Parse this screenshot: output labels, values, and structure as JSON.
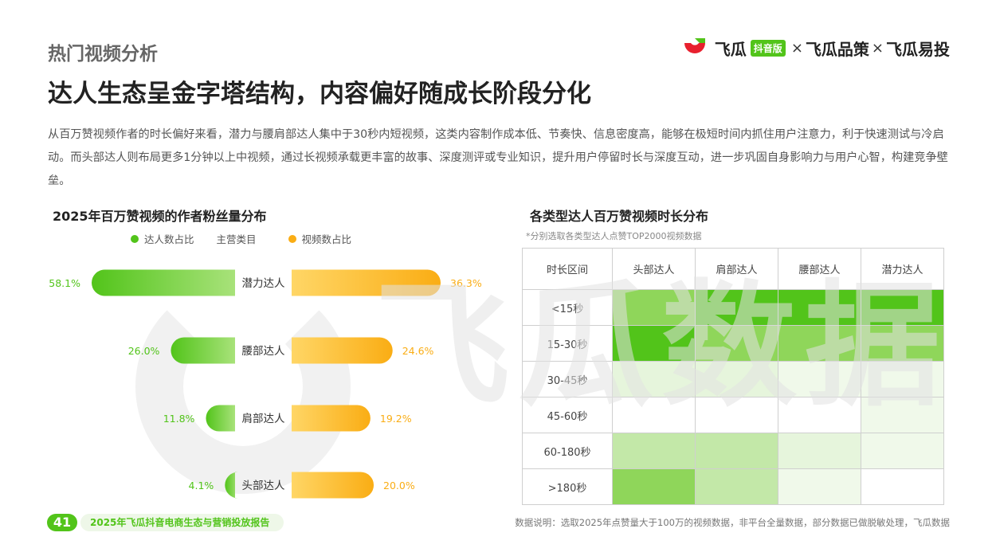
{
  "header": {
    "section_title": "热门视频分析",
    "headline": "达人生态呈金字塔结构，内容偏好随成长阶段分化",
    "intro": "从百万赞视频作者的时长偏好来看，潜力与腰肩部达人集中于30秒内短视频，这类内容制作成本低、节奏快、信息密度高，能够在极短时间内抓住用户注意力，利于快速测试与冷启动。而头部达人则布局更多1分钟以上中视频，通过长视频承载更丰富的故事、深度测评或专业知识，提升用户停留时长与深度互动，进一步巩固自身影响力与用户心智，构建竞争壁垒。"
  },
  "logo": {
    "brand1": "飞瓜",
    "badge": "抖音版",
    "sep": "×",
    "brand2": "飞瓜品策",
    "brand3": "飞瓜易投"
  },
  "watermark": "飞瓜数据",
  "colors": {
    "green": "#52c41a",
    "orange": "#faad14",
    "heat_levels": [
      "#ffffff",
      "#f0f9ea",
      "#e6f5dc",
      "#c3e8a8",
      "#8fd65a",
      "#52c41a"
    ]
  },
  "left_chart": {
    "title": "2025年百万赞视频的作者粉丝量分布",
    "legend": {
      "left": "达人数占比",
      "center": "主营类目",
      "right": "视频数占比"
    }
  },
  "right_chart": {
    "title": "各类型达人百万赞视频时长分布",
    "note": "*分别选取各类型达人点赞TOP2000视频数据"
  },
  "chart_data": [
    {
      "type": "bar",
      "categories": [
        "潜力达人",
        "腰部达人",
        "肩部达人",
        "头部达人"
      ],
      "series": [
        {
          "name": "达人数占比",
          "values": [
            58.1,
            26.0,
            11.8,
            4.1
          ],
          "labels": [
            "58.1%",
            "26.0%",
            "11.8%",
            "4.1%"
          ]
        },
        {
          "name": "视频数占比",
          "values": [
            36.3,
            24.6,
            19.2,
            20.0
          ],
          "labels": [
            "36.3%",
            "24.6%",
            "19.2%",
            "20.0%"
          ]
        }
      ],
      "title": "2025年百万赞视频的作者粉丝量分布",
      "legend": "top"
    },
    {
      "type": "heatmap",
      "title": "各类型达人百万赞视频时长分布",
      "corner": "时长区间",
      "columns": [
        "头部达人",
        "肩部达人",
        "腰部达人",
        "潜力达人"
      ],
      "rows": [
        "<15秒",
        "15-30秒",
        "30-45秒",
        "45-60秒",
        "60-180秒",
        ">180秒"
      ],
      "levels": [
        [
          4,
          5,
          5,
          5
        ],
        [
          5,
          4,
          4,
          4
        ],
        [
          2,
          2,
          1,
          1
        ],
        [
          0,
          0,
          0,
          1
        ],
        [
          3,
          3,
          2,
          1
        ],
        [
          4,
          3,
          1,
          0
        ]
      ]
    }
  ],
  "footer": {
    "page_number": "41",
    "report_title": "2025年飞瓜抖音电商生态与营销投放报告",
    "data_note": "数据说明：选取2025年点赞量大于100万的视频数据，非平台全量数据，部分数据已做脱敏处理，飞瓜数据"
  }
}
